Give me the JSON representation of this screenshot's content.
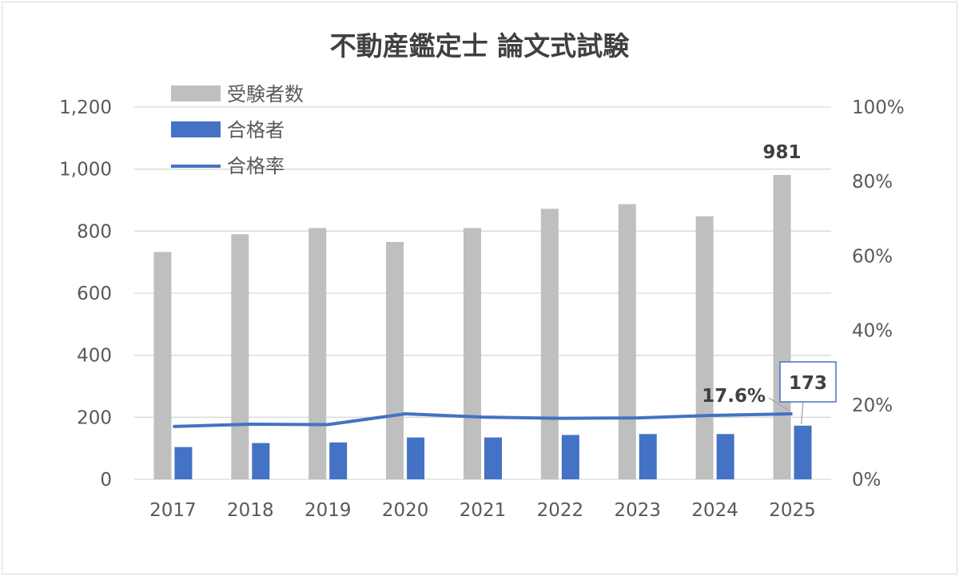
{
  "chart_data": {
    "type": "bar+line",
    "title": "不動産鑑定士 論文式試験",
    "categories": [
      "2017",
      "2018",
      "2019",
      "2020",
      "2021",
      "2022",
      "2023",
      "2024",
      "2025"
    ],
    "series": [
      {
        "name": "受験者数",
        "type": "bar",
        "axis": "left",
        "color": "#bfbfbf",
        "values": [
          733,
          790,
          810,
          765,
          810,
          872,
          887,
          848,
          981
        ]
      },
      {
        "name": "合格者",
        "type": "bar",
        "axis": "left",
        "color": "#4472c4",
        "values": [
          104,
          117,
          119,
          135,
          135,
          143,
          146,
          146,
          173
        ]
      },
      {
        "name": "合格率",
        "type": "line",
        "axis": "right",
        "color": "#4472c4",
        "values": [
          14.2,
          14.8,
          14.7,
          17.6,
          16.7,
          16.4,
          16.5,
          17.2,
          17.6
        ]
      }
    ],
    "y_left": {
      "min": 0,
      "max": 1200,
      "step": 200,
      "tick_labels": [
        "0",
        "200",
        "400",
        "600",
        "800",
        "1,000",
        "1,200"
      ]
    },
    "y_right": {
      "min": 0,
      "max": 100,
      "step": 20,
      "tick_labels": [
        "0%",
        "20%",
        "40%",
        "60%",
        "80%",
        "100%"
      ]
    },
    "grid": true,
    "legend_position": "top-left",
    "annotations": [
      {
        "text": "981",
        "series": "受験者数",
        "category": "2025"
      },
      {
        "text": "173",
        "series": "合格者",
        "category": "2025",
        "boxed": true
      },
      {
        "text": "17.6%",
        "series": "合格率",
        "category": "2025"
      }
    ]
  }
}
